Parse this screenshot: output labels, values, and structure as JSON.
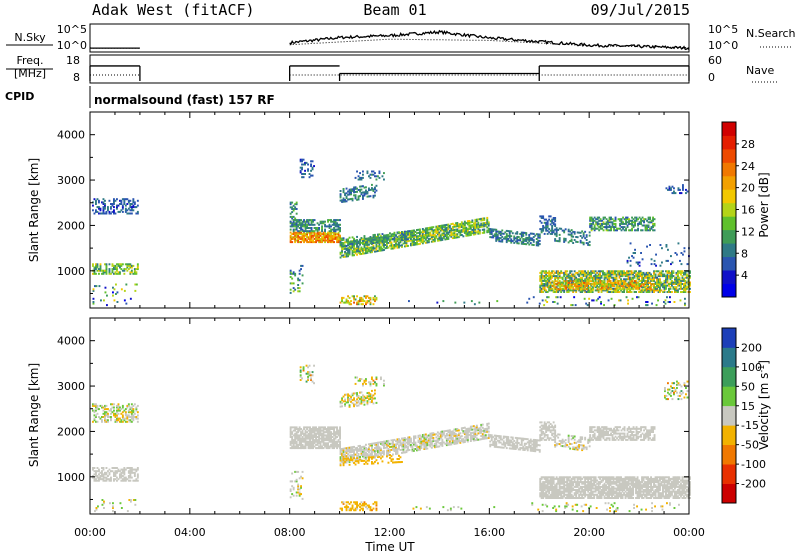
{
  "header": {
    "station": "Adak West (fitACF)",
    "beam": "Beam 01",
    "date": "09/Jul/2015"
  },
  "chart_data": [
    {
      "type": "line",
      "panel": "noise",
      "left_label": "N.Sky",
      "right_label": "N.Search",
      "y_ticks_left": [
        "10^5",
        "10^0"
      ],
      "y_ticks_right": [
        "10^5",
        "10^0"
      ],
      "x_range_hours": [
        0,
        24
      ],
      "series": [
        {
          "name": "N.Sky",
          "style": "solid",
          "segments": [
            [
              0,
              2
            ],
            [
              8,
              24
            ]
          ],
          "points": [
            [
              0.05,
              0.08
            ],
            [
              2,
              0.08
            ],
            [
              8,
              0.3
            ],
            [
              10,
              0.52
            ],
            [
              12,
              0.6
            ],
            [
              14,
              0.75
            ],
            [
              16,
              0.5
            ],
            [
              18,
              0.35
            ],
            [
              20,
              0.2
            ],
            [
              22,
              0.15
            ],
            [
              24,
              0.08
            ]
          ]
        },
        {
          "name": "N.Search",
          "style": "dotted",
          "segments": [
            [
              0,
              2
            ],
            [
              8,
              24
            ]
          ],
          "points": [
            [
              0.05,
              0.08
            ],
            [
              2,
              0.08
            ],
            [
              8,
              0.22
            ],
            [
              12,
              0.45
            ],
            [
              16,
              0.4
            ],
            [
              20,
              0.18
            ],
            [
              24,
              0.1
            ]
          ]
        }
      ]
    },
    {
      "type": "line",
      "panel": "frequency",
      "left_label_lines": [
        "Freq.",
        "[MHz]"
      ],
      "right_label": "Nave",
      "y_ticks_left": [
        "18",
        "8"
      ],
      "y_ticks_right": [
        "60",
        "0"
      ],
      "x_range_hours": [
        0,
        24
      ],
      "series": [
        {
          "name": "Freq.",
          "style": "solid",
          "unit": "MHz",
          "steps": [
            [
              0,
              2,
              14.7
            ],
            [
              8,
              10,
              14.7
            ],
            [
              10,
              18,
              10.5
            ],
            [
              18,
              24,
              14.7
            ]
          ]
        },
        {
          "name": "Nave",
          "style": "dotted",
          "steps": [
            [
              0,
              2,
              10
            ],
            [
              8,
              24,
              10
            ]
          ]
        }
      ]
    },
    {
      "type": "text",
      "panel": "cpid",
      "label": "CPID",
      "value": "normalsound (fast) 157 RF"
    },
    {
      "type": "heatmap",
      "panel": "power",
      "ylabel": "Slant Range [km]",
      "ylim": [
        180,
        4500
      ],
      "yticks": [
        1000,
        2000,
        3000,
        4000
      ],
      "x_range_hours": [
        0,
        24
      ],
      "colorbar": {
        "label": "Power [dB]",
        "range": [
          0,
          32
        ],
        "tick_labels": [
          "4",
          "8",
          "12",
          "16",
          "20",
          "24",
          "28"
        ],
        "colors": [
          "#0000e8",
          "#1010c8",
          "#2a55b0",
          "#2f7a86",
          "#3f9c57",
          "#5fc02c",
          "#b4d418",
          "#f2c800",
          "#f2a000",
          "#f07800",
          "#ee4a00",
          "#e41e00",
          "#d00000"
        ]
      },
      "bands": [
        {
          "t0": 0.08,
          "t1": 1.9,
          "r0": 2250,
          "r1": 2600,
          "slope": 0,
          "p": 0.45,
          "level": 6,
          "spread": 3
        },
        {
          "t0": 0.08,
          "t1": 1.9,
          "r0": 920,
          "r1": 1150,
          "slope": 0,
          "p": 0.55,
          "level": 13,
          "spread": 5
        },
        {
          "t0": 0.1,
          "t1": 1.9,
          "r0": 230,
          "r1": 700,
          "slope": 0,
          "p": 0.07,
          "level": 10,
          "spread": 10
        },
        {
          "t0": 8.0,
          "t1": 8.3,
          "r0": 2000,
          "r1": 2500,
          "slope": 0,
          "p": 0.5,
          "level": 10,
          "spread": 5
        },
        {
          "t0": 8.0,
          "t1": 10.0,
          "r0": 1620,
          "r1": 1860,
          "slope": 0,
          "p": 0.85,
          "level": 22,
          "spread": 6
        },
        {
          "t0": 8.0,
          "t1": 10.0,
          "r0": 1860,
          "r1": 2130,
          "slope": 0,
          "p": 0.6,
          "level": 9,
          "spread": 4
        },
        {
          "t0": 8.4,
          "t1": 9.0,
          "r0": 3050,
          "r1": 3450,
          "slope": 0,
          "p": 0.3,
          "level": 6,
          "spread": 3
        },
        {
          "t0": 8.0,
          "t1": 8.5,
          "r0": 500,
          "r1": 1100,
          "slope": 0,
          "p": 0.2,
          "level": 10,
          "spread": 6
        },
        {
          "t0": 10.0,
          "t1": 16.0,
          "r0": 1280,
          "r1": 1620,
          "slope": 95,
          "p": 0.75,
          "level": 13,
          "spread": 6
        },
        {
          "t0": 10.0,
          "t1": 13.0,
          "r0": 1520,
          "r1": 1720,
          "slope": 60,
          "p": 0.5,
          "level": 10,
          "spread": 4
        },
        {
          "t0": 16.0,
          "t1": 18.0,
          "r0": 1660,
          "r1": 1940,
          "slope": -60,
          "p": 0.6,
          "level": 8,
          "spread": 4
        },
        {
          "t0": 10.0,
          "t1": 11.5,
          "r0": 2500,
          "r1": 2800,
          "slope": 80,
          "p": 0.45,
          "level": 8,
          "spread": 3
        },
        {
          "t0": 10.6,
          "t1": 11.8,
          "r0": 3000,
          "r1": 3200,
          "slope": 0,
          "p": 0.25,
          "level": 7,
          "spread": 3
        },
        {
          "t0": 10.0,
          "t1": 11.5,
          "r0": 250,
          "r1": 430,
          "slope": 0,
          "p": 0.4,
          "level": 18,
          "spread": 8
        },
        {
          "t0": 18.0,
          "t1": 18.6,
          "r0": 1800,
          "r1": 2200,
          "slope": 0,
          "p": 0.45,
          "level": 7,
          "spread": 3
        },
        {
          "t0": 18.6,
          "t1": 20.0,
          "r0": 1650,
          "r1": 1950,
          "slope": -70,
          "p": 0.4,
          "level": 8,
          "spread": 3
        },
        {
          "t0": 20.0,
          "t1": 22.6,
          "r0": 1880,
          "r1": 2180,
          "slope": 0,
          "p": 0.55,
          "level": 10,
          "spread": 5
        },
        {
          "t0": 18.0,
          "t1": 24.0,
          "r0": 520,
          "r1": 980,
          "slope": 0,
          "p": 0.7,
          "level": 14,
          "spread": 8
        },
        {
          "t0": 18.5,
          "t1": 22.5,
          "r0": 580,
          "r1": 780,
          "slope": 0,
          "p": 0.5,
          "level": 20,
          "spread": 6
        },
        {
          "t0": 17.5,
          "t1": 23.8,
          "r0": 230,
          "r1": 420,
          "slope": 0,
          "p": 0.1,
          "level": 10,
          "spread": 10
        },
        {
          "t0": 12.5,
          "t1": 17.5,
          "r0": 250,
          "r1": 350,
          "slope": 0,
          "p": 0.04,
          "level": 8,
          "spread": 6
        },
        {
          "t0": 23.0,
          "t1": 23.9,
          "r0": 2700,
          "r1": 2900,
          "slope": 0,
          "p": 0.25,
          "level": 6,
          "spread": 3
        },
        {
          "t0": 21.5,
          "t1": 24.0,
          "r0": 1100,
          "r1": 1600,
          "slope": 0,
          "p": 0.08,
          "level": 6,
          "spread": 3
        }
      ]
    },
    {
      "type": "heatmap",
      "panel": "velocity",
      "ylabel": "Slant Range [km]",
      "ylim": [
        180,
        4500
      ],
      "yticks": [
        1000,
        2000,
        3000,
        4000
      ],
      "x_range_hours": [
        0,
        24
      ],
      "xlabel": "Time UT",
      "xticks": [
        "00:00",
        "04:00",
        "08:00",
        "12:00",
        "16:00",
        "20:00",
        "00:00"
      ],
      "colorbar": {
        "label": "Velocity [m s^-1]",
        "tick_labels": [
          "200",
          "100",
          "50",
          "15",
          "-15",
          "-50",
          "-100",
          "-200"
        ],
        "colors": [
          "#1c3fb8",
          "#2b7a8a",
          "#3c9e5a",
          "#6ac83a",
          "#c8c8c0",
          "#f2b200",
          "#f07800",
          "#e83000",
          "#cc0000"
        ]
      },
      "bands": [
        {
          "t0": 0.08,
          "t1": 1.9,
          "r0": 2200,
          "r1": 2600,
          "slope": 0,
          "p": 0.45,
          "level": 4,
          "spread": 1
        },
        {
          "t0": 0.08,
          "t1": 1.9,
          "r0": 900,
          "r1": 1200,
          "slope": 0,
          "p": 0.55,
          "level": 4,
          "spread": 0.5
        },
        {
          "t0": 0.1,
          "t1": 1.9,
          "r0": 230,
          "r1": 500,
          "slope": 0,
          "p": 0.1,
          "level": 4,
          "spread": 1.5
        },
        {
          "t0": 8.0,
          "t1": 10.0,
          "r0": 1620,
          "r1": 2100,
          "slope": 0,
          "p": 0.8,
          "level": 4,
          "spread": 0.4
        },
        {
          "t0": 8.0,
          "t1": 8.5,
          "r0": 500,
          "r1": 1100,
          "slope": 0,
          "p": 0.25,
          "level": 4,
          "spread": 0.8
        },
        {
          "t0": 8.4,
          "t1": 9.0,
          "r0": 3050,
          "r1": 3450,
          "slope": 0,
          "p": 0.3,
          "level": 4,
          "spread": 2
        },
        {
          "t0": 10.0,
          "t1": 16.0,
          "r0": 1280,
          "r1": 1620,
          "slope": 95,
          "p": 0.7,
          "level": 4,
          "spread": 0.6
        },
        {
          "t0": 10.0,
          "t1": 12.5,
          "r0": 1240,
          "r1": 1400,
          "slope": 30,
          "p": 0.35,
          "level": 5,
          "spread": 0.4
        },
        {
          "t0": 16.0,
          "t1": 18.0,
          "r0": 1660,
          "r1": 1940,
          "slope": -60,
          "p": 0.6,
          "level": 4,
          "spread": 0.5
        },
        {
          "t0": 10.0,
          "t1": 11.5,
          "r0": 2500,
          "r1": 2800,
          "slope": 80,
          "p": 0.45,
          "level": 4,
          "spread": 1.5
        },
        {
          "t0": 10.6,
          "t1": 11.8,
          "r0": 3000,
          "r1": 3200,
          "slope": 0,
          "p": 0.25,
          "level": 4,
          "spread": 2
        },
        {
          "t0": 10.0,
          "t1": 11.5,
          "r0": 250,
          "r1": 430,
          "slope": 0,
          "p": 0.4,
          "level": 5,
          "spread": 0.6
        },
        {
          "t0": 18.0,
          "t1": 18.6,
          "r0": 1800,
          "r1": 2200,
          "slope": 0,
          "p": 0.5,
          "level": 4,
          "spread": 0.4
        },
        {
          "t0": 18.6,
          "t1": 20.0,
          "r0": 1650,
          "r1": 1950,
          "slope": -70,
          "p": 0.4,
          "level": 4,
          "spread": 0.6
        },
        {
          "t0": 20.0,
          "t1": 22.6,
          "r0": 1800,
          "r1": 2100,
          "slope": 0,
          "p": 0.6,
          "level": 4,
          "spread": 0.4
        },
        {
          "t0": 18.0,
          "t1": 24.0,
          "r0": 520,
          "r1": 980,
          "slope": 0,
          "p": 0.8,
          "level": 4,
          "spread": 0.3
        },
        {
          "t0": 17.5,
          "t1": 23.8,
          "r0": 230,
          "r1": 420,
          "slope": 0,
          "p": 0.1,
          "level": 4,
          "spread": 1.5
        },
        {
          "t0": 23.0,
          "t1": 23.9,
          "r0": 2700,
          "r1": 3100,
          "slope": 0,
          "p": 0.25,
          "level": 4,
          "spread": 2
        },
        {
          "t0": 12.5,
          "t1": 17.5,
          "r0": 250,
          "r1": 350,
          "slope": 0,
          "p": 0.05,
          "level": 4,
          "spread": 1
        }
      ]
    }
  ]
}
